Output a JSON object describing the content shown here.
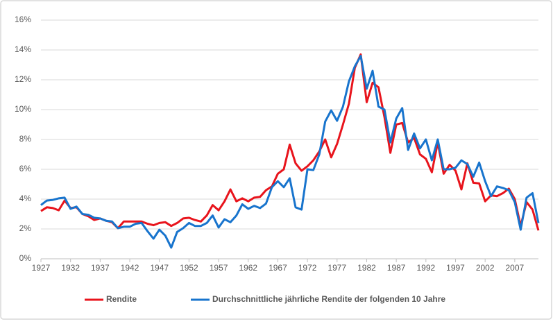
{
  "chart_data": {
    "type": "line",
    "x": [
      1927,
      1928,
      1929,
      1930,
      1931,
      1932,
      1933,
      1934,
      1935,
      1936,
      1937,
      1938,
      1939,
      1940,
      1941,
      1942,
      1943,
      1944,
      1945,
      1946,
      1947,
      1948,
      1949,
      1950,
      1951,
      1952,
      1953,
      1954,
      1955,
      1956,
      1957,
      1958,
      1959,
      1960,
      1961,
      1962,
      1963,
      1964,
      1965,
      1966,
      1967,
      1968,
      1969,
      1970,
      1971,
      1972,
      1973,
      1974,
      1975,
      1976,
      1977,
      1978,
      1979,
      1980,
      1981,
      1982,
      1983,
      1984,
      1985,
      1986,
      1987,
      1988,
      1989,
      1990,
      1991,
      1992,
      1993,
      1994,
      1995,
      1996,
      1997,
      1998,
      1999,
      2000,
      2001,
      2002,
      2003,
      2004,
      2005,
      2006,
      2007,
      2008,
      2009,
      2010,
      2011
    ],
    "series": [
      {
        "name": "Rendite",
        "color": "#e8141c",
        "values": [
          3.2,
          3.45,
          3.4,
          3.25,
          3.9,
          3.4,
          3.45,
          3.0,
          2.85,
          2.6,
          2.7,
          2.55,
          2.45,
          2.05,
          2.5,
          2.5,
          2.5,
          2.5,
          2.35,
          2.25,
          2.4,
          2.45,
          2.2,
          2.4,
          2.7,
          2.75,
          2.6,
          2.5,
          2.9,
          3.6,
          3.25,
          3.85,
          4.65,
          3.85,
          4.05,
          3.85,
          4.1,
          4.15,
          4.6,
          4.85,
          5.7,
          6.0,
          7.65,
          6.4,
          5.9,
          6.2,
          6.6,
          7.2,
          8.0,
          6.8,
          7.7,
          9.0,
          10.4,
          12.8,
          13.7,
          10.5,
          11.8,
          11.5,
          9.5,
          7.1,
          9.0,
          9.1,
          7.8,
          8.1,
          7.0,
          6.7,
          5.8,
          7.8,
          5.7,
          6.3,
          5.9,
          4.65,
          6.4,
          5.1,
          5.05,
          3.85,
          4.25,
          4.2,
          4.4,
          4.7,
          4.0,
          2.2,
          3.8,
          3.3,
          1.9
        ]
      },
      {
        "name": "Durchschnittliche jährliche Rendite der folgenden 10 Jahre",
        "color": "#1874cd",
        "values": [
          3.6,
          3.9,
          3.95,
          4.05,
          4.1,
          3.35,
          3.5,
          3.0,
          2.95,
          2.75,
          2.7,
          2.55,
          2.5,
          2.05,
          2.15,
          2.15,
          2.35,
          2.4,
          1.85,
          1.35,
          1.95,
          1.55,
          0.75,
          1.8,
          2.05,
          2.4,
          2.2,
          2.2,
          2.4,
          2.9,
          2.1,
          2.65,
          2.45,
          2.9,
          3.65,
          3.35,
          3.55,
          3.4,
          3.7,
          4.8,
          5.2,
          4.8,
          5.4,
          3.45,
          3.3,
          6.0,
          5.95,
          7.0,
          9.2,
          9.95,
          9.25,
          10.2,
          11.9,
          12.9,
          13.6,
          11.4,
          12.6,
          10.2,
          10.0,
          7.8,
          9.4,
          10.1,
          7.3,
          8.4,
          7.4,
          8.0,
          6.6,
          8.0,
          6.0,
          6.0,
          6.1,
          6.6,
          6.35,
          5.5,
          6.45,
          5.2,
          4.2,
          4.85,
          4.75,
          4.6,
          3.8,
          1.95,
          4.1,
          4.4,
          2.4
        ]
      }
    ],
    "xlim": [
      1927,
      2011
    ],
    "xticks": [
      1927,
      1932,
      1937,
      1942,
      1947,
      1952,
      1957,
      1962,
      1967,
      1972,
      1977,
      1982,
      1987,
      1992,
      1997,
      2002,
      2007
    ],
    "ylim": [
      0,
      16
    ],
    "yticks": [
      {
        "value": 0,
        "label": "0%"
      },
      {
        "value": 2,
        "label": "2%"
      },
      {
        "value": 4,
        "label": "4%"
      },
      {
        "value": 6,
        "label": "6%"
      },
      {
        "value": 8,
        "label": "8%"
      },
      {
        "value": 10,
        "label": "10%"
      },
      {
        "value": 12,
        "label": "12%"
      },
      {
        "value": 14,
        "label": "14%"
      },
      {
        "value": 16,
        "label": "16%"
      }
    ],
    "grid": true,
    "legend": "bottom"
  }
}
